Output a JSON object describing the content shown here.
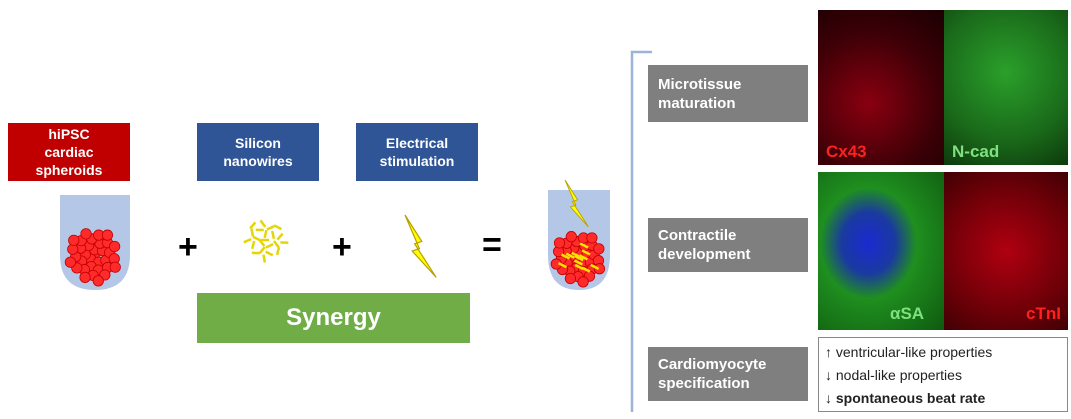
{
  "inputs": [
    {
      "label": "hiPSC cardiac spheroids"
    },
    {
      "label": "Silicon nanowires"
    },
    {
      "label": "Electrical stimulation"
    }
  ],
  "operators": [
    "+",
    "+",
    "="
  ],
  "synergy": "Synergy",
  "outcomes": [
    {
      "label": "Microtissue maturation",
      "stains": [
        "Cx43",
        "N-cad"
      ]
    },
    {
      "label": "Contractile development",
      "stains": [
        "αSA",
        "cTnI"
      ]
    },
    {
      "label": "Cardiomyocyte specification",
      "effects": [
        "↑ ventricular-like properties",
        "↓ nodal-like properties",
        "↓ spontaneous beat rate"
      ]
    }
  ]
}
